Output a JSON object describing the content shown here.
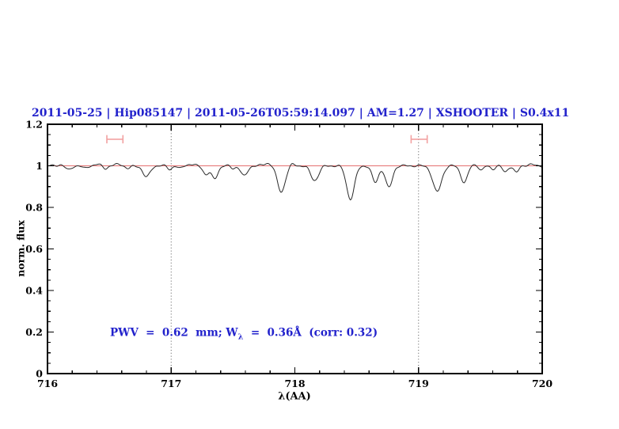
{
  "header": {
    "title": "2011-05-25 | Hip085147 | 2011-05-26T05:59:14.097 | AM=1.27 | XSHOOTER | S0.4x11",
    "title_color": "#2222cc"
  },
  "annotation": {
    "pre": "PWV  =  0.62  mm; W",
    "sub": "λ",
    "post": "  =  0.36Å  (corr: 0.32)",
    "color": "#2222cc"
  },
  "chart_data": {
    "type": "line",
    "title": "2011-05-25 | Hip085147 | 2011-05-26T05:59:14.097 | AM=1.27 | XSHOOTER | S0.4x11",
    "xlabel": "λ(AA)",
    "ylabel": "norm. flux",
    "xlim": [
      716,
      720
    ],
    "ylim": [
      0,
      1.2
    ],
    "x_major_ticks": [
      716,
      717,
      718,
      719,
      720
    ],
    "x_tick_labels": [
      "716",
      "717",
      "718",
      "719",
      "720"
    ],
    "x_minor_step": 0.2,
    "y_major_ticks": [
      0,
      0.2,
      0.4,
      0.6,
      0.8,
      1,
      1.2
    ],
    "y_tick_labels": [
      "0",
      "0.2",
      "0.4",
      "0.6",
      "0.8",
      "1",
      "1.2"
    ],
    "y_minor_step": 0.05,
    "grid": false,
    "legend": null,
    "dotted_vlines": [
      717,
      719
    ],
    "continuum_line": {
      "y": 1.0,
      "color": "#e57070"
    },
    "range_markers": [
      {
        "x1": 716.48,
        "x2": 716.61,
        "y": 1.128,
        "cap_half": 0.02,
        "color": "#f2a2a2"
      },
      {
        "x1": 718.94,
        "x2": 719.07,
        "y": 1.128,
        "cap_half": 0.02,
        "color": "#f2a2a2"
      }
    ],
    "series_color": "#2a2a2a",
    "continuum": 1.0,
    "sampling_step": 0.008,
    "noise": {
      "terms": [
        {
          "amp": 0.0035,
          "freq": 48.3,
          "phase": 0.2
        },
        {
          "amp": 0.0025,
          "freq": 97.7,
          "phase": 1.0
        }
      ]
    },
    "absorption_lines": [
      {
        "c": 716.17,
        "d": 0.02,
        "w": 0.022
      },
      {
        "c": 716.3,
        "d": 0.012,
        "w": 0.02
      },
      {
        "c": 716.47,
        "d": 0.012,
        "w": 0.018
      },
      {
        "c": 716.65,
        "d": 0.014,
        "w": 0.022
      },
      {
        "c": 716.8,
        "d": 0.055,
        "w": 0.028
      },
      {
        "c": 716.99,
        "d": 0.016,
        "w": 0.018
      },
      {
        "c": 717.07,
        "d": 0.014,
        "w": 0.018
      },
      {
        "c": 717.28,
        "d": 0.04,
        "w": 0.022
      },
      {
        "c": 717.35,
        "d": 0.062,
        "w": 0.026
      },
      {
        "c": 717.5,
        "d": 0.012,
        "w": 0.018
      },
      {
        "c": 717.59,
        "d": 0.05,
        "w": 0.026
      },
      {
        "c": 717.89,
        "d": 0.125,
        "w": 0.032
      },
      {
        "c": 718.16,
        "d": 0.07,
        "w": 0.032
      },
      {
        "c": 718.45,
        "d": 0.16,
        "w": 0.032
      },
      {
        "c": 718.65,
        "d": 0.08,
        "w": 0.026
      },
      {
        "c": 718.76,
        "d": 0.105,
        "w": 0.028
      },
      {
        "c": 719.15,
        "d": 0.125,
        "w": 0.035
      },
      {
        "c": 719.37,
        "d": 0.08,
        "w": 0.028
      },
      {
        "c": 719.51,
        "d": 0.022,
        "w": 0.018
      },
      {
        "c": 719.6,
        "d": 0.015,
        "w": 0.018
      },
      {
        "c": 719.7,
        "d": 0.03,
        "w": 0.02
      },
      {
        "c": 719.79,
        "d": 0.033,
        "w": 0.02
      }
    ],
    "emission_bumps": [
      {
        "c": 716.1,
        "d": 0.006,
        "w": 0.02
      },
      {
        "c": 716.4,
        "d": 0.006,
        "w": 0.025
      },
      {
        "c": 716.58,
        "d": 0.008,
        "w": 0.03
      },
      {
        "c": 717.15,
        "d": 0.007,
        "w": 0.03
      },
      {
        "c": 717.78,
        "d": 0.013,
        "w": 0.028
      },
      {
        "c": 717.98,
        "d": 0.008,
        "w": 0.02
      },
      {
        "c": 719.44,
        "d": 0.007,
        "w": 0.025
      },
      {
        "c": 719.9,
        "d": 0.006,
        "w": 0.03
      }
    ]
  }
}
